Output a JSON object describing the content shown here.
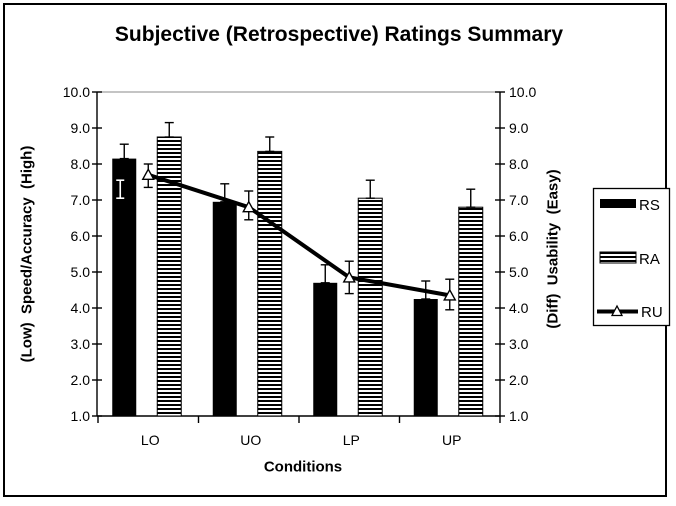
{
  "chart_data": {
    "type": "bar",
    "title": "Subjective (Retrospective) Ratings Summary",
    "xlabel": "Conditions",
    "ylabel_left": "(Low)  Speed/Accuracy  (High)",
    "ylabel_right": "(Diff)  Usability  (Easy)",
    "categories": [
      "LO",
      "UO",
      "LP",
      "UP"
    ],
    "ylim": [
      1.0,
      10.0
    ],
    "ytick_labels": [
      "10.0",
      "9.0",
      "8.0",
      "7.0",
      "6.0",
      "5.0",
      "4.0",
      "3.0",
      "2.0",
      "1.0"
    ],
    "ytick_values": [
      10,
      9,
      8,
      7,
      6,
      5,
      4,
      3,
      2,
      1
    ],
    "dual_axis": true,
    "grid": "top-gridline-only",
    "legend_position": "right",
    "series": [
      {
        "name": "RS",
        "type": "bar",
        "fill": "solid-black",
        "values": [
          8.15,
          6.95,
          4.7,
          4.25
        ],
        "error_plus": [
          0.4,
          0.5,
          0.5,
          0.5
        ]
      },
      {
        "name": "RA",
        "type": "bar",
        "fill": "horizontal-stripes",
        "values": [
          8.75,
          8.35,
          7.05,
          6.8
        ],
        "error_plus": [
          0.4,
          0.4,
          0.5,
          0.5
        ]
      },
      {
        "name": "RU",
        "type": "line",
        "marker": "open-triangle-up",
        "values": [
          7.7,
          6.8,
          4.85,
          4.35
        ],
        "error_plus": [
          0.3,
          0.45,
          0.45,
          0.45
        ],
        "error_minus": [
          0.35,
          0.35,
          0.45,
          0.4
        ]
      }
    ],
    "annotations": [
      {
        "label": "inner-white-whisker",
        "series": "RS",
        "category": "LO",
        "from": 7.05,
        "to": 7.55,
        "color": "#ffffff"
      }
    ],
    "colors": {
      "foreground": "#000000",
      "background": "#ffffff",
      "top_gridline": "#a0a0a0"
    }
  }
}
